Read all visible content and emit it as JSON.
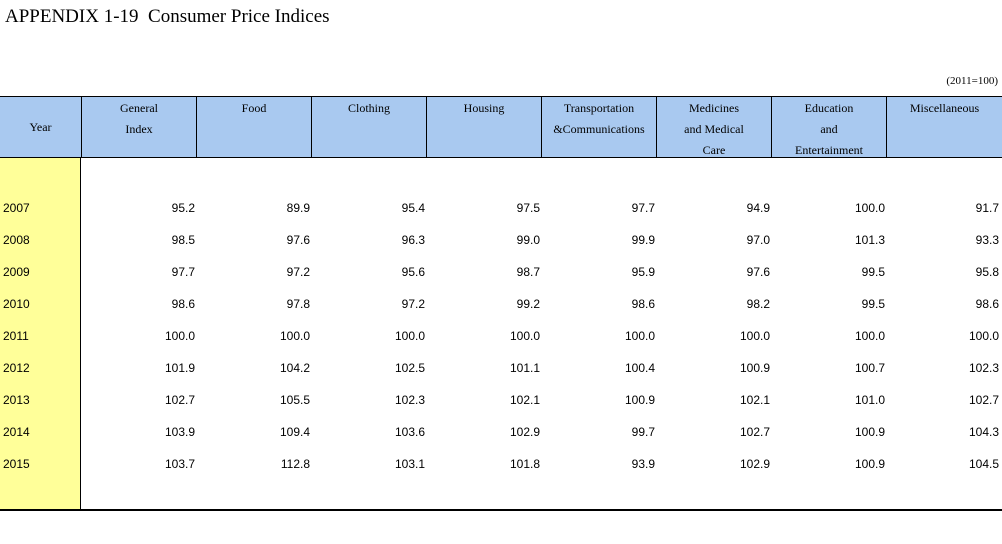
{
  "title": "APPENDIX 1-19  Consumer Price Indices",
  "base_note": "(2011=100)",
  "columns": {
    "year": "Year",
    "general_index": "General\nIndex",
    "food": "Food",
    "clothing": "Clothing",
    "housing": "Housing",
    "transportation": "Transportation\n&Communications",
    "medicines": "Medicines\nand Medical\nCare",
    "education": "Education\nand\nEntertainment",
    "miscellaneous": "Miscellaneous"
  },
  "rows": [
    {
      "year": "2007",
      "values": [
        "95.2",
        "89.9",
        "95.4",
        "97.5",
        "97.7",
        "94.9",
        "100.0",
        "91.7"
      ]
    },
    {
      "year": "2008",
      "values": [
        "98.5",
        "97.6",
        "96.3",
        "99.0",
        "99.9",
        "97.0",
        "101.3",
        "93.3"
      ]
    },
    {
      "year": "2009",
      "values": [
        "97.7",
        "97.2",
        "95.6",
        "98.7",
        "95.9",
        "97.6",
        "99.5",
        "95.8"
      ]
    },
    {
      "year": "2010",
      "values": [
        "98.6",
        "97.8",
        "97.2",
        "99.2",
        "98.6",
        "98.2",
        "99.5",
        "98.6"
      ]
    },
    {
      "year": "2011",
      "values": [
        "100.0",
        "100.0",
        "100.0",
        "100.0",
        "100.0",
        "100.0",
        "100.0",
        "100.0"
      ]
    },
    {
      "year": "2012",
      "values": [
        "101.9",
        "104.2",
        "102.5",
        "101.1",
        "100.4",
        "100.9",
        "100.7",
        "102.3"
      ]
    },
    {
      "year": "2013",
      "values": [
        "102.7",
        "105.5",
        "102.3",
        "102.1",
        "100.9",
        "102.1",
        "101.0",
        "102.7"
      ]
    },
    {
      "year": "2014",
      "values": [
        "103.9",
        "109.4",
        "103.6",
        "102.9",
        "99.7",
        "102.7",
        "100.9",
        "104.3"
      ]
    },
    {
      "year": "2015",
      "values": [
        "103.7",
        "112.8",
        "103.1",
        "101.8",
        "93.9",
        "102.9",
        "100.9",
        "104.5"
      ]
    }
  ]
}
